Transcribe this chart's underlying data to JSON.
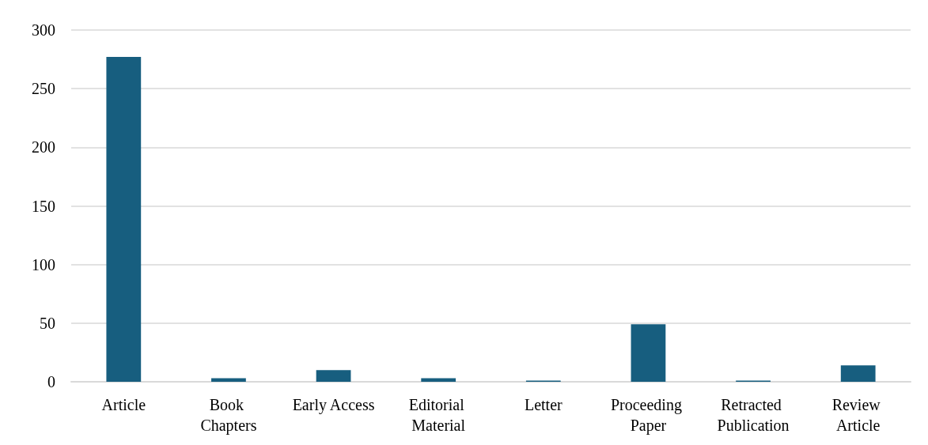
{
  "chart_data": {
    "type": "bar",
    "categories": [
      "Article",
      "Book Chapters",
      "Early Access",
      "Editorial Material",
      "Letter",
      "Proceeding Paper",
      "Retracted Publication",
      "Review Article"
    ],
    "values": [
      277,
      3,
      10,
      3,
      1,
      49,
      1,
      14
    ],
    "color": "#175e7f",
    "ylim": [
      0,
      300
    ],
    "yticks": [
      0,
      50,
      100,
      150,
      200,
      250,
      300
    ],
    "grid": "y"
  }
}
